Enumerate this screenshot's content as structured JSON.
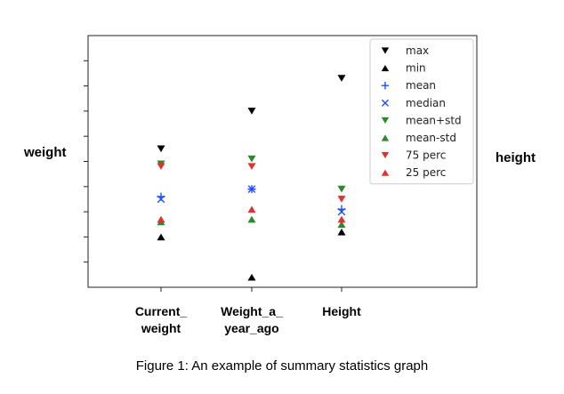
{
  "chart_data": {
    "type": "scatter",
    "title": "",
    "xlabel": "",
    "ylabel": "weight",
    "ylabel_right": "height",
    "categories": [
      [
        "Current_",
        "weight"
      ],
      [
        "Weight_a_",
        "year_ago"
      ],
      [
        "Height"
      ]
    ],
    "ylim": [
      0,
      10
    ],
    "yticks_labeled": false,
    "ytick_positions": [
      1,
      2,
      3,
      4,
      5,
      6,
      7,
      8,
      9
    ],
    "grid": false,
    "legend_position": "top-right",
    "series": [
      {
        "name": "max",
        "marker": "triangle-down",
        "color": "#000000",
        "values": [
          5.5,
          7.0,
          8.3
        ]
      },
      {
        "name": "min",
        "marker": "triangle-up",
        "color": "#000000",
        "values": [
          2.0,
          0.4,
          2.2
        ]
      },
      {
        "name": "mean",
        "marker": "plus",
        "color": "#1f4fff",
        "values": [
          3.6,
          3.9,
          3.1
        ]
      },
      {
        "name": "median",
        "marker": "x",
        "color": "#1f4fff",
        "values": [
          3.5,
          3.9,
          3.0
        ]
      },
      {
        "name": "mean+std",
        "marker": "triangle-down",
        "color": "#2a8a2a",
        "values": [
          4.9,
          5.1,
          3.9
        ]
      },
      {
        "name": "mean-std",
        "marker": "triangle-up",
        "color": "#2a8a2a",
        "values": [
          2.6,
          2.7,
          2.5
        ]
      },
      {
        "name": "75 perc",
        "marker": "triangle-down",
        "color": "#e03030",
        "values": [
          4.8,
          4.8,
          3.5
        ]
      },
      {
        "name": "25 perc",
        "marker": "triangle-up",
        "color": "#e03030",
        "values": [
          2.7,
          3.1,
          2.7
        ]
      }
    ]
  },
  "labels": {
    "left": "weight",
    "right": "height"
  },
  "caption": "Figure 1: An example of summary statistics graph"
}
